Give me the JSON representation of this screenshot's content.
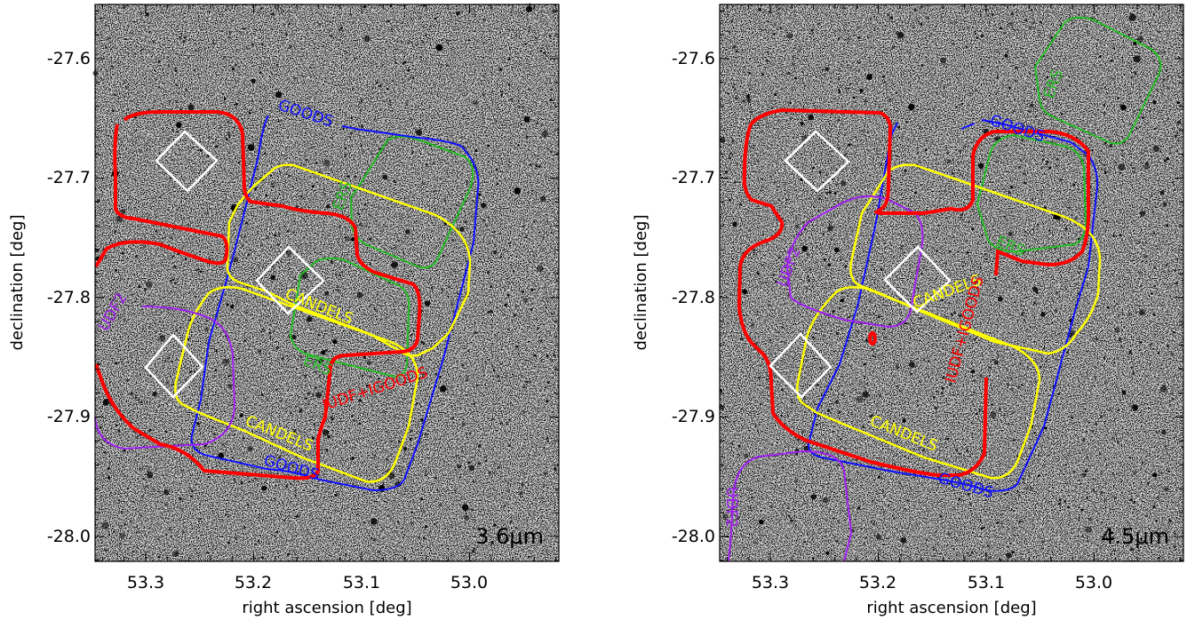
{
  "chart_data": [
    {
      "type": "scatter",
      "band_label": "3.6μm",
      "xlabel": "right ascension [deg]",
      "ylabel": "declination [deg]",
      "xlim": [
        53.35,
        52.92
      ],
      "ylim": [
        -28.02,
        -27.55
      ],
      "xticks": [
        "53.3",
        "53.2",
        "53.1",
        "53.0"
      ],
      "yticks": [
        "-27.6",
        "-27.7",
        "-27.8",
        "-27.9",
        "-28.0"
      ],
      "grid": false,
      "regions": [
        {
          "name": "GOODS",
          "color": "#1010ff",
          "labels": [
            "GOODS",
            "GOODS"
          ]
        },
        {
          "name": "CANDELS",
          "color": "#ffff00",
          "labels": [
            "CANDELS",
            "CANDELS"
          ]
        },
        {
          "name": "ERS",
          "color": "#22bb22",
          "labels": [
            "ERS",
            "ERS"
          ]
        },
        {
          "name": "UDF2",
          "color": "#a020f0",
          "labels": [
            "UDF2"
          ]
        },
        {
          "name": "IUDF+IGOODS",
          "color": "#ff0000",
          "labels": [
            "IUDF+IGOODS"
          ]
        }
      ]
    },
    {
      "type": "scatter",
      "band_label": "4.5μm",
      "xlabel": "right ascension [deg]",
      "ylabel": "declination [deg]",
      "xlim": [
        53.35,
        52.92
      ],
      "ylim": [
        -28.02,
        -27.55
      ],
      "xticks": [
        "53.3",
        "53.2",
        "53.1",
        "53.0"
      ],
      "yticks": [
        "-27.6",
        "-27.7",
        "-27.8",
        "-27.9",
        "-28.0"
      ],
      "grid": false,
      "regions": [
        {
          "name": "GOODS",
          "color": "#1010ff",
          "labels": [
            "GOODS",
            "GOODS"
          ]
        },
        {
          "name": "CANDELS",
          "color": "#ffff00",
          "labels": [
            "CANDELS",
            "CANDELS"
          ]
        },
        {
          "name": "ERS",
          "color": "#22bb22",
          "labels": [
            "ERS",
            "ERS"
          ]
        },
        {
          "name": "UDF2",
          "color": "#a020f0",
          "labels": [
            "UDF2",
            "UDF2"
          ]
        },
        {
          "name": "IUDF+IGOODS",
          "color": "#ff0000",
          "labels": [
            "IUDF+IGOODS"
          ]
        }
      ]
    }
  ]
}
